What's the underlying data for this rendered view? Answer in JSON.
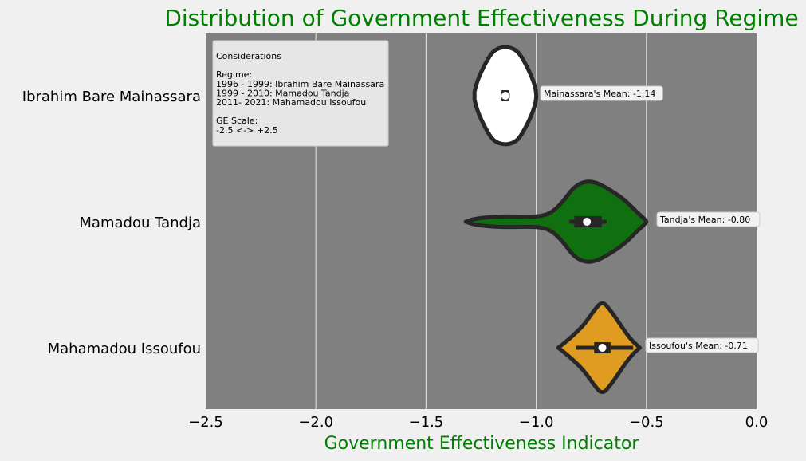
{
  "chart_data": {
    "type": "violin",
    "orientation": "horizontal",
    "title": "Distribution of Government Effectiveness During Regime",
    "xlabel": "Government Effectiveness Indicator",
    "ylabel": "",
    "xlim": [
      -2.5,
      0.0
    ],
    "xticks": [
      -2.5,
      -2.0,
      -1.5,
      -1.0,
      -0.5,
      0.0
    ],
    "xtick_labels": [
      "−2.5",
      "−2.0",
      "−1.5",
      "−1.0",
      "−0.5",
      "0.0"
    ],
    "grid": "vertical",
    "categories": [
      "Ibrahim Bare Mainassara",
      "Mamadou Tandja",
      "Mahamadou Issoufou"
    ],
    "series": [
      {
        "name": "Ibrahim Bare Mainassara",
        "color": "#ffffff",
        "median": -1.14,
        "q1": -1.15,
        "q3": -1.13,
        "whisker_low": -1.16,
        "whisker_high": -1.12,
        "mean": -1.14,
        "mean_label": "Mainassara's Mean: -1.14",
        "profile": [
          [
            -1.28,
            0.08
          ],
          [
            -1.27,
            0.26
          ],
          [
            -1.25,
            0.48
          ],
          [
            -1.22,
            0.74
          ],
          [
            -1.19,
            0.93
          ],
          [
            -1.14,
            1.0
          ],
          [
            -1.09,
            0.93
          ],
          [
            -1.06,
            0.74
          ],
          [
            -1.03,
            0.48
          ],
          [
            -1.01,
            0.26
          ],
          [
            -1.0,
            0.08
          ]
        ]
      },
      {
        "name": "Mamadou Tandja",
        "color": "#107010",
        "median": -0.77,
        "q1": -0.82,
        "q3": -0.71,
        "whisker_low": -0.85,
        "whisker_high": -0.68,
        "mean": -0.8,
        "mean_label": "Tandja's Mean: -0.80",
        "profile": [
          [
            -1.32,
            0.0
          ],
          [
            -1.28,
            0.06
          ],
          [
            -1.2,
            0.1
          ],
          [
            -1.12,
            0.11
          ],
          [
            -1.05,
            0.1
          ],
          [
            -0.98,
            0.11
          ],
          [
            -0.93,
            0.18
          ],
          [
            -0.88,
            0.4
          ],
          [
            -0.83,
            0.7
          ],
          [
            -0.78,
            0.82
          ],
          [
            -0.73,
            0.8
          ],
          [
            -0.67,
            0.66
          ],
          [
            -0.6,
            0.45
          ],
          [
            -0.54,
            0.18
          ],
          [
            -0.5,
            0.02
          ]
        ]
      },
      {
        "name": "Mahamadou Issoufou",
        "color": "#e09c20",
        "median": -0.7,
        "q1": -0.73,
        "q3": -0.67,
        "whisker_low": -0.82,
        "whisker_high": -0.56,
        "mean": -0.71,
        "mean_label": "Issoufou's Mean: -0.71",
        "profile": [
          [
            -0.9,
            0.0
          ],
          [
            -0.86,
            0.14
          ],
          [
            -0.82,
            0.3
          ],
          [
            -0.78,
            0.48
          ],
          [
            -0.74,
            0.74
          ],
          [
            -0.7,
            0.95
          ],
          [
            -0.66,
            0.74
          ],
          [
            -0.62,
            0.48
          ],
          [
            -0.59,
            0.28
          ],
          [
            -0.56,
            0.12
          ],
          [
            -0.53,
            0.0
          ]
        ]
      }
    ],
    "annotation_box": {
      "lines": [
        "Considerations",
        "",
        "Regime:",
        "1996 - 1999: Ibrahim Bare Mainassara",
        "1999 - 2010: Mamadou Tandja",
        "2011- 2021:  Mahamadou Issoufou",
        "",
        "GE Scale:",
        "-2.5 <-> +2.5"
      ]
    },
    "colors": {
      "plot_bg": "#808080",
      "figure_bg": "#f0f0f0",
      "title": "#008000",
      "xlabel": "#008000",
      "outline": "#262626"
    }
  }
}
